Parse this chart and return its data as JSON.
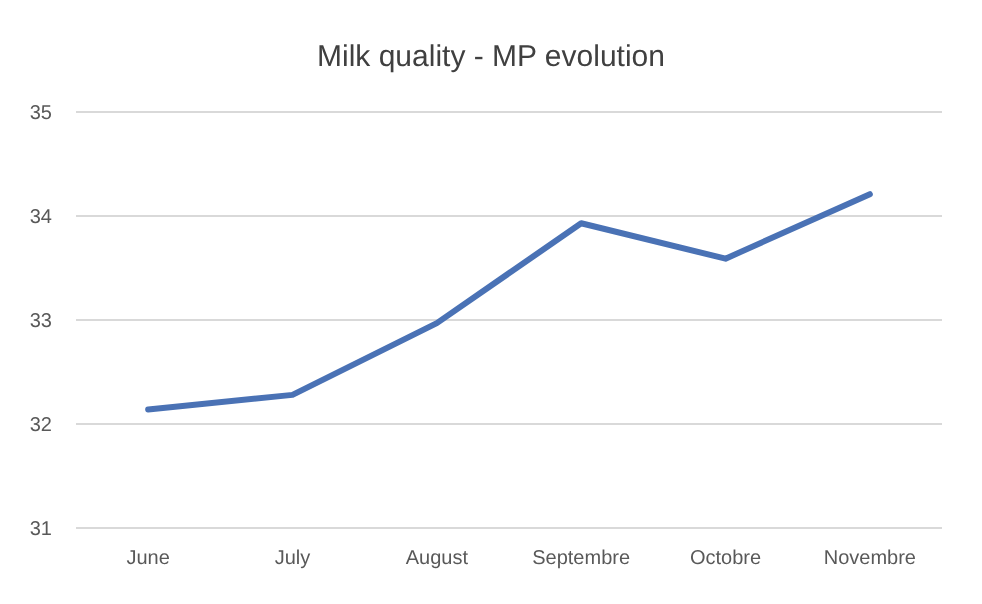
{
  "chart_data": {
    "type": "line",
    "title": "Milk quality - MP evolution",
    "categories": [
      "June",
      "July",
      "August",
      "Septembre",
      "Octobre",
      "Novembre"
    ],
    "series": [
      {
        "color": "#4a72b5",
        "values": [
          32.14,
          32.28,
          32.97,
          33.93,
          33.59,
          34.21
        ]
      }
    ],
    "ylim": [
      31,
      35
    ],
    "yticks": [
      31,
      32,
      33,
      34,
      35
    ],
    "grid": true,
    "marker": "none",
    "line_style": "solid"
  }
}
